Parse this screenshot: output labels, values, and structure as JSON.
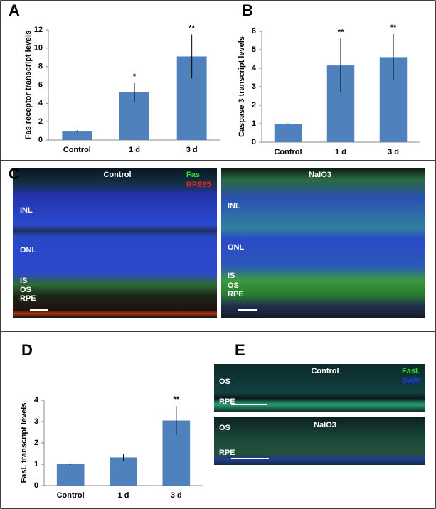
{
  "chart_data": [
    {
      "type": "bar",
      "panel": "A",
      "ylabel": "Fas receptor transcript levels",
      "categories": [
        "Control",
        "1 d",
        "3 d"
      ],
      "values": [
        1,
        5.2,
        9.1
      ],
      "errors": [
        0.05,
        1.0,
        2.4
      ],
      "annotations": [
        null,
        "*",
        "**"
      ],
      "color": "#4f81bd",
      "ylim": [
        0,
        12
      ],
      "yticks": [
        0,
        2,
        4,
        6,
        8,
        10,
        12
      ]
    },
    {
      "type": "bar",
      "panel": "B",
      "ylabel": "Caspase 3 transcript levels",
      "categories": [
        "Control",
        "1 d",
        "3 d"
      ],
      "values": [
        1,
        4.15,
        4.6
      ],
      "errors": [
        0.02,
        1.45,
        1.25
      ],
      "annotations": [
        null,
        "**",
        "**"
      ],
      "color": "#4f81bd",
      "ylim": [
        0,
        6
      ],
      "yticks": [
        0,
        1,
        2,
        3,
        4,
        5,
        6
      ]
    },
    {
      "type": "bar",
      "panel": "D",
      "ylabel": "FasL transcript levels",
      "categories": [
        "Control",
        "1 d",
        "3 d"
      ],
      "values": [
        1,
        1.32,
        3.05
      ],
      "errors": [
        0.02,
        0.18,
        0.68
      ],
      "annotations": [
        null,
        null,
        "**"
      ],
      "color": "#4f81bd",
      "ylim": [
        0,
        4
      ],
      "yticks": [
        0,
        1,
        2,
        3,
        4
      ]
    }
  ],
  "image_panels": [
    {
      "panel": "C",
      "images": [
        {
          "title": "Control",
          "labels": [
            "INL",
            "ONL",
            "IS",
            "OS",
            "RPE"
          ],
          "legend": [
            {
              "name": "Fas",
              "color": "#33dd33"
            },
            {
              "name": "RPE65",
              "color": "#ee2222"
            }
          ]
        },
        {
          "title": "NaIO3",
          "labels": [
            "INL",
            "ONL",
            "IS",
            "OS",
            "RPE"
          ]
        }
      ]
    },
    {
      "panel": "E",
      "images": [
        {
          "title": "Control",
          "labels": [
            "OS",
            "RPE"
          ],
          "legend": [
            {
              "name": "FasL",
              "color": "#33dd33"
            },
            {
              "name": "DAPI",
              "color": "#2233ee"
            }
          ]
        },
        {
          "title": "NaIO3",
          "labels": [
            "OS",
            "RPE"
          ]
        }
      ]
    }
  ]
}
